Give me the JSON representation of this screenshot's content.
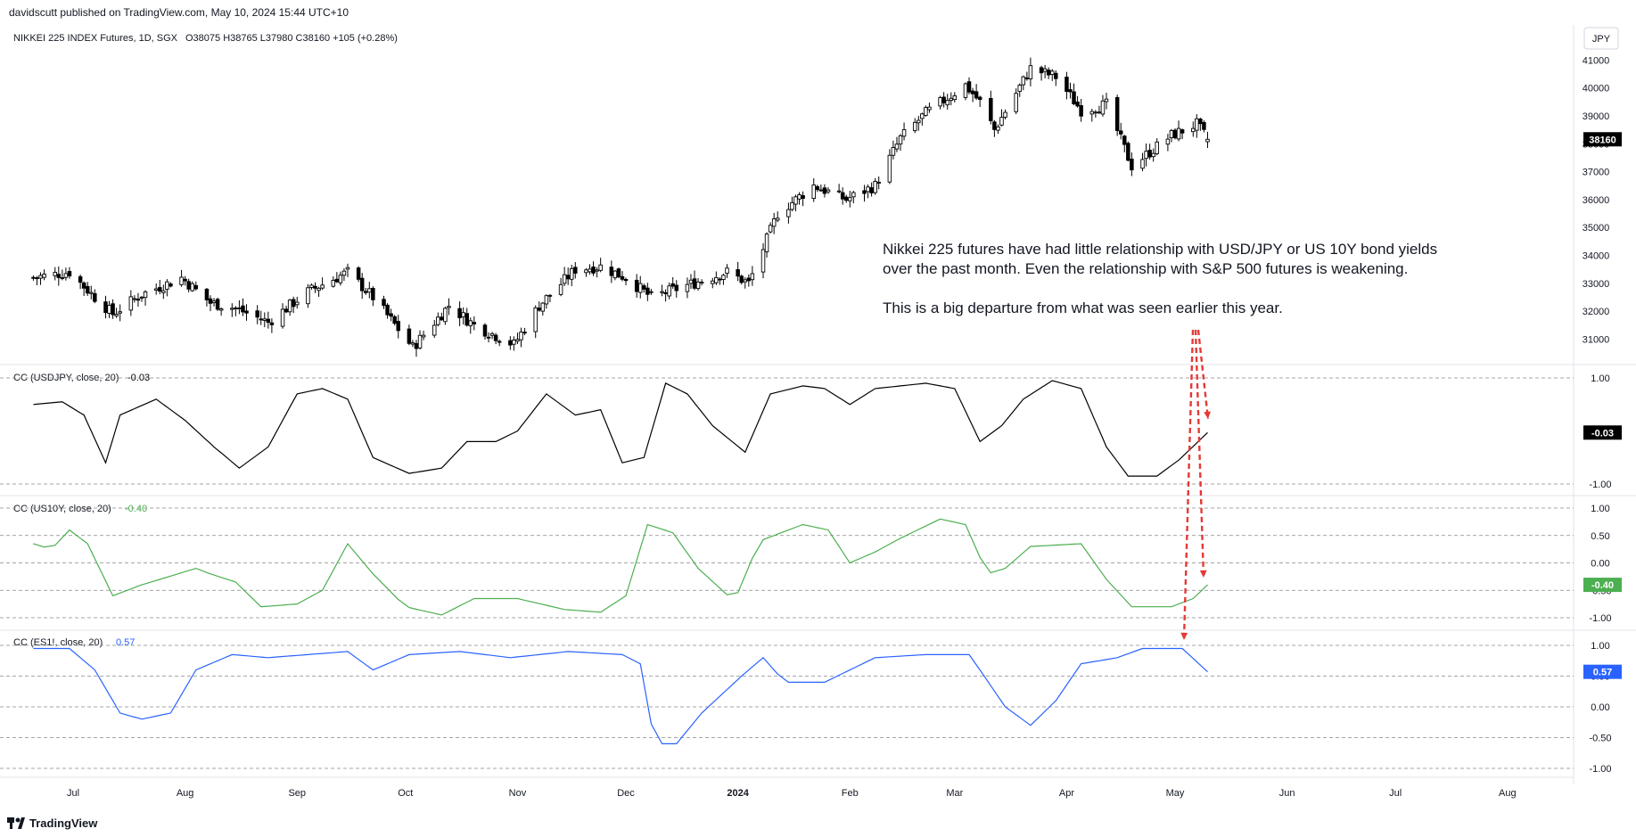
{
  "publisher": "davidscutt published on TradingView.com, May 10, 2024 15:44 UTC+10",
  "footer_logo_text": "TradingView",
  "currency_button": "JPY",
  "annotation": {
    "line1": "Nikkei 225 futures have had little relationship with USD/JPY or US 10Y bond yields",
    "line2": "over the past month. Even the relationship with S&P 500 futures is weakening.",
    "line3": "This is a big departure from what was seen earlier this year."
  },
  "colors": {
    "candle": "#000000",
    "usdjpy": "#000000",
    "us10y": "#4caf50",
    "es1": "#2962ff",
    "arrow": "#e53935",
    "gridline": "#888888"
  },
  "x_axis": {
    "labels": [
      "Jul",
      "Aug",
      "Sep",
      "Oct",
      "Nov",
      "Dec",
      "2024",
      "Feb",
      "Mar",
      "Apr",
      "May",
      "Jun",
      "Jul",
      "Aug"
    ],
    "bold": [
      "2024"
    ]
  },
  "chart_data": [
    {
      "type": "candlestick",
      "title": "NIKKEI 225 INDEX Futures, 1D, SGX",
      "ohlc_label": "O38075 H38765 L37980 C38160 +105 (+0.28%)",
      "y_ticks": [
        "41000",
        "40000",
        "39000",
        "38000",
        "37000",
        "36000",
        "35000",
        "34000",
        "33000",
        "32000",
        "31000"
      ],
      "ylim": [
        30500,
        41300
      ],
      "last_value_label": "38160",
      "anchors": [
        {
          "date": "2023-06-20",
          "v": 33200
        },
        {
          "date": "2023-06-30",
          "v": 33400
        },
        {
          "date": "2023-07-07",
          "v": 32500
        },
        {
          "date": "2023-07-12",
          "v": 31900
        },
        {
          "date": "2023-07-20",
          "v": 32600
        },
        {
          "date": "2023-07-31",
          "v": 33200
        },
        {
          "date": "2023-08-08",
          "v": 32300
        },
        {
          "date": "2023-08-15",
          "v": 32100
        },
        {
          "date": "2023-08-24",
          "v": 31600
        },
        {
          "date": "2023-09-04",
          "v": 32700
        },
        {
          "date": "2023-09-15",
          "v": 33400
        },
        {
          "date": "2023-09-22",
          "v": 32500
        },
        {
          "date": "2023-10-03",
          "v": 30700
        },
        {
          "date": "2023-10-13",
          "v": 32200
        },
        {
          "date": "2023-10-20",
          "v": 31500
        },
        {
          "date": "2023-10-31",
          "v": 30800
        },
        {
          "date": "2023-11-07",
          "v": 32200
        },
        {
          "date": "2023-11-17",
          "v": 33500
        },
        {
          "date": "2023-11-24",
          "v": 33600
        },
        {
          "date": "2023-12-01",
          "v": 33200
        },
        {
          "date": "2023-12-08",
          "v": 32500
        },
        {
          "date": "2023-12-15",
          "v": 32800
        },
        {
          "date": "2023-12-29",
          "v": 33400
        },
        {
          "date": "2024-01-04",
          "v": 33000
        },
        {
          "date": "2024-01-12",
          "v": 35500
        },
        {
          "date": "2024-01-22",
          "v": 36500
        },
        {
          "date": "2024-01-31",
          "v": 36000
        },
        {
          "date": "2024-02-08",
          "v": 36500
        },
        {
          "date": "2024-02-15",
          "v": 38200
        },
        {
          "date": "2024-02-22",
          "v": 39100
        },
        {
          "date": "2024-03-04",
          "v": 40100
        },
        {
          "date": "2024-03-08",
          "v": 39500
        },
        {
          "date": "2024-03-12",
          "v": 38500
        },
        {
          "date": "2024-03-22",
          "v": 40700
        },
        {
          "date": "2024-03-29",
          "v": 40400
        },
        {
          "date": "2024-04-05",
          "v": 39200
        },
        {
          "date": "2024-04-12",
          "v": 39400
        },
        {
          "date": "2024-04-19",
          "v": 37200
        },
        {
          "date": "2024-04-24",
          "v": 37700
        },
        {
          "date": "2024-04-30",
          "v": 38300
        },
        {
          "date": "2024-05-07",
          "v": 38700
        },
        {
          "date": "2024-05-10",
          "v": 38160
        }
      ]
    },
    {
      "type": "line",
      "title": "CC (USDJPY, close, 20)",
      "value_label": "-0.03",
      "y_ticks": [
        "1.00",
        "-1.00"
      ],
      "ylim": [
        -1.0,
        1.0
      ],
      "last_value_label": "-0.03",
      "anchors": [
        {
          "date": "2023-06-20",
          "v": 0.5
        },
        {
          "date": "2023-06-28",
          "v": 0.55
        },
        {
          "date": "2023-07-04",
          "v": 0.3
        },
        {
          "date": "2023-07-10",
          "v": -0.6
        },
        {
          "date": "2023-07-14",
          "v": 0.3
        },
        {
          "date": "2023-07-24",
          "v": 0.6
        },
        {
          "date": "2023-08-01",
          "v": 0.2
        },
        {
          "date": "2023-08-09",
          "v": -0.3
        },
        {
          "date": "2023-08-16",
          "v": -0.7
        },
        {
          "date": "2023-08-24",
          "v": -0.3
        },
        {
          "date": "2023-09-01",
          "v": 0.7
        },
        {
          "date": "2023-09-08",
          "v": 0.8
        },
        {
          "date": "2023-09-15",
          "v": 0.6
        },
        {
          "date": "2023-09-22",
          "v": -0.5
        },
        {
          "date": "2023-10-02",
          "v": -0.8
        },
        {
          "date": "2023-10-11",
          "v": -0.7
        },
        {
          "date": "2023-10-18",
          "v": -0.2
        },
        {
          "date": "2023-10-26",
          "v": -0.2
        },
        {
          "date": "2023-11-01",
          "v": 0.0
        },
        {
          "date": "2023-11-09",
          "v": 0.7
        },
        {
          "date": "2023-11-17",
          "v": 0.3
        },
        {
          "date": "2023-11-24",
          "v": 0.4
        },
        {
          "date": "2023-11-30",
          "v": -0.6
        },
        {
          "date": "2023-12-06",
          "v": -0.5
        },
        {
          "date": "2023-12-12",
          "v": 0.9
        },
        {
          "date": "2023-12-18",
          "v": 0.7
        },
        {
          "date": "2023-12-25",
          "v": 0.1
        },
        {
          "date": "2024-01-03",
          "v": -0.4
        },
        {
          "date": "2024-01-10",
          "v": 0.7
        },
        {
          "date": "2024-01-19",
          "v": 0.85
        },
        {
          "date": "2024-01-25",
          "v": 0.8
        },
        {
          "date": "2024-02-01",
          "v": 0.5
        },
        {
          "date": "2024-02-08",
          "v": 0.8
        },
        {
          "date": "2024-02-22",
          "v": 0.9
        },
        {
          "date": "2024-03-01",
          "v": 0.8
        },
        {
          "date": "2024-03-08",
          "v": -0.2
        },
        {
          "date": "2024-03-14",
          "v": 0.1
        },
        {
          "date": "2024-03-20",
          "v": 0.6
        },
        {
          "date": "2024-03-28",
          "v": 0.95
        },
        {
          "date": "2024-04-05",
          "v": 0.8
        },
        {
          "date": "2024-04-12",
          "v": -0.3
        },
        {
          "date": "2024-04-18",
          "v": -0.85
        },
        {
          "date": "2024-04-26",
          "v": -0.85
        },
        {
          "date": "2024-05-02",
          "v": -0.55
        },
        {
          "date": "2024-05-10",
          "v": -0.03
        }
      ]
    },
    {
      "type": "line",
      "title": "CC (US10Y, close, 20)",
      "value_label": "-0.40",
      "y_ticks": [
        "1.00",
        "0.50",
        "0.00",
        "-0.50",
        "-1.00"
      ],
      "ylim": [
        -1.0,
        1.0
      ],
      "last_value_label": "-0.40",
      "anchors": [
        {
          "date": "2023-06-20",
          "v": 0.35
        },
        {
          "date": "2023-06-25",
          "v": 0.25
        },
        {
          "date": "2023-06-30",
          "v": 0.6
        },
        {
          "date": "2023-07-05",
          "v": 0.35
        },
        {
          "date": "2023-07-12",
          "v": -0.6
        },
        {
          "date": "2023-07-20",
          "v": -0.4
        },
        {
          "date": "2023-07-30",
          "v": -0.2
        },
        {
          "date": "2023-08-04",
          "v": -0.1
        },
        {
          "date": "2023-08-08",
          "v": -0.2
        },
        {
          "date": "2023-08-15",
          "v": -0.35
        },
        {
          "date": "2023-08-22",
          "v": -0.8
        },
        {
          "date": "2023-09-01",
          "v": -0.75
        },
        {
          "date": "2023-09-08",
          "v": -0.5
        },
        {
          "date": "2023-09-15",
          "v": 0.35
        },
        {
          "date": "2023-09-22",
          "v": -0.2
        },
        {
          "date": "2023-10-01",
          "v": -0.8
        },
        {
          "date": "2023-10-11",
          "v": -0.95
        },
        {
          "date": "2023-10-20",
          "v": -0.65
        },
        {
          "date": "2023-11-01",
          "v": -0.65
        },
        {
          "date": "2023-11-14",
          "v": -0.85
        },
        {
          "date": "2023-11-24",
          "v": -0.9
        },
        {
          "date": "2023-12-01",
          "v": -0.6
        },
        {
          "date": "2023-12-07",
          "v": 0.7
        },
        {
          "date": "2023-12-14",
          "v": 0.55
        },
        {
          "date": "2023-12-21",
          "v": -0.1
        },
        {
          "date": "2023-12-31",
          "v": -0.7
        },
        {
          "date": "2024-01-07",
          "v": 0.4
        },
        {
          "date": "2024-01-19",
          "v": 0.7
        },
        {
          "date": "2024-01-26",
          "v": 0.6
        },
        {
          "date": "2024-02-01",
          "v": 0.0
        },
        {
          "date": "2024-02-08",
          "v": 0.2
        },
        {
          "date": "2024-02-15",
          "v": 0.45
        },
        {
          "date": "2024-02-26",
          "v": 0.8
        },
        {
          "date": "2024-03-04",
          "v": 0.7
        },
        {
          "date": "2024-03-10",
          "v": -0.2
        },
        {
          "date": "2024-03-15",
          "v": -0.1
        },
        {
          "date": "2024-03-22",
          "v": 0.3
        },
        {
          "date": "2024-04-05",
          "v": 0.35
        },
        {
          "date": "2024-04-12",
          "v": -0.3
        },
        {
          "date": "2024-04-19",
          "v": -0.8
        },
        {
          "date": "2024-04-30",
          "v": -0.8
        },
        {
          "date": "2024-05-06",
          "v": -0.65
        },
        {
          "date": "2024-05-10",
          "v": -0.4
        }
      ]
    },
    {
      "type": "line",
      "title": "CC (ES1!, close, 20)",
      "value_label": "0.57",
      "y_ticks": [
        "1.00",
        "0.50",
        "0.00",
        "-0.50",
        "-1.00"
      ],
      "ylim": [
        -1.0,
        1.0
      ],
      "last_value_label": "0.57",
      "anchors": [
        {
          "date": "2023-06-20",
          "v": 0.95
        },
        {
          "date": "2023-06-30",
          "v": 0.95
        },
        {
          "date": "2023-07-07",
          "v": 0.6
        },
        {
          "date": "2023-07-14",
          "v": -0.1
        },
        {
          "date": "2023-07-20",
          "v": -0.2
        },
        {
          "date": "2023-07-28",
          "v": -0.1
        },
        {
          "date": "2023-08-04",
          "v": 0.6
        },
        {
          "date": "2023-08-14",
          "v": 0.85
        },
        {
          "date": "2023-08-24",
          "v": 0.8
        },
        {
          "date": "2023-09-04",
          "v": 0.85
        },
        {
          "date": "2023-09-15",
          "v": 0.9
        },
        {
          "date": "2023-09-22",
          "v": 0.6
        },
        {
          "date": "2023-10-02",
          "v": 0.85
        },
        {
          "date": "2023-10-16",
          "v": 0.9
        },
        {
          "date": "2023-10-30",
          "v": 0.8
        },
        {
          "date": "2023-11-15",
          "v": 0.9
        },
        {
          "date": "2023-11-30",
          "v": 0.85
        },
        {
          "date": "2023-12-05",
          "v": 0.7
        },
        {
          "date": "2023-12-09",
          "v": -0.6
        },
        {
          "date": "2023-12-15",
          "v": -0.6
        },
        {
          "date": "2023-12-22",
          "v": -0.1
        },
        {
          "date": "2024-01-02",
          "v": 0.5
        },
        {
          "date": "2024-01-08",
          "v": 0.8
        },
        {
          "date": "2024-01-14",
          "v": 0.4
        },
        {
          "date": "2024-01-25",
          "v": 0.4
        },
        {
          "date": "2024-02-08",
          "v": 0.8
        },
        {
          "date": "2024-02-22",
          "v": 0.85
        },
        {
          "date": "2024-03-05",
          "v": 0.85
        },
        {
          "date": "2024-03-08",
          "v": 0.6
        },
        {
          "date": "2024-03-15",
          "v": 0.0
        },
        {
          "date": "2024-03-22",
          "v": -0.3
        },
        {
          "date": "2024-03-29",
          "v": 0.1
        },
        {
          "date": "2024-04-05",
          "v": 0.7
        },
        {
          "date": "2024-04-15",
          "v": 0.8
        },
        {
          "date": "2024-04-22",
          "v": 0.95
        },
        {
          "date": "2024-05-03",
          "v": 0.95
        },
        {
          "date": "2024-05-10",
          "v": 0.57
        }
      ]
    }
  ]
}
